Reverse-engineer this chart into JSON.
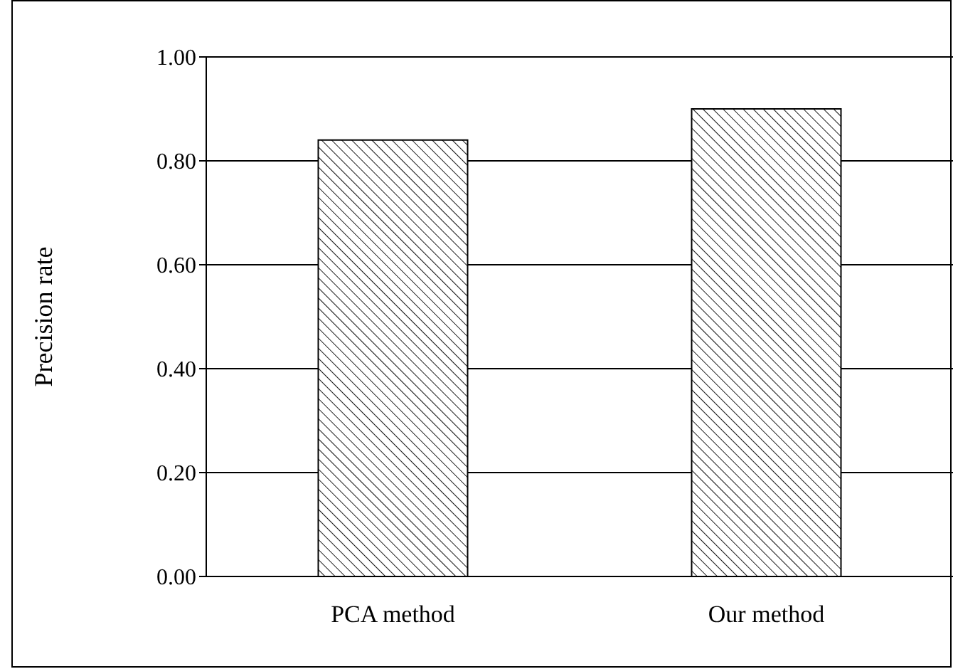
{
  "chart_data": {
    "type": "bar",
    "ylabel": "Precision rate",
    "categories": [
      "PCA method",
      "Our method"
    ],
    "values": [
      0.84,
      0.9
    ],
    "color": "#000000",
    "ylim": [
      0,
      1
    ],
    "yticks": [
      {
        "value": 0,
        "label": "0.00"
      },
      {
        "value": 0.2,
        "label": "0.20"
      },
      {
        "value": 0.4,
        "label": "0.40"
      },
      {
        "value": 0.6,
        "label": "0.60"
      },
      {
        "value": 0.8,
        "label": "0.80"
      },
      {
        "value": 1,
        "label": "1.00"
      }
    ],
    "grid": "y"
  }
}
